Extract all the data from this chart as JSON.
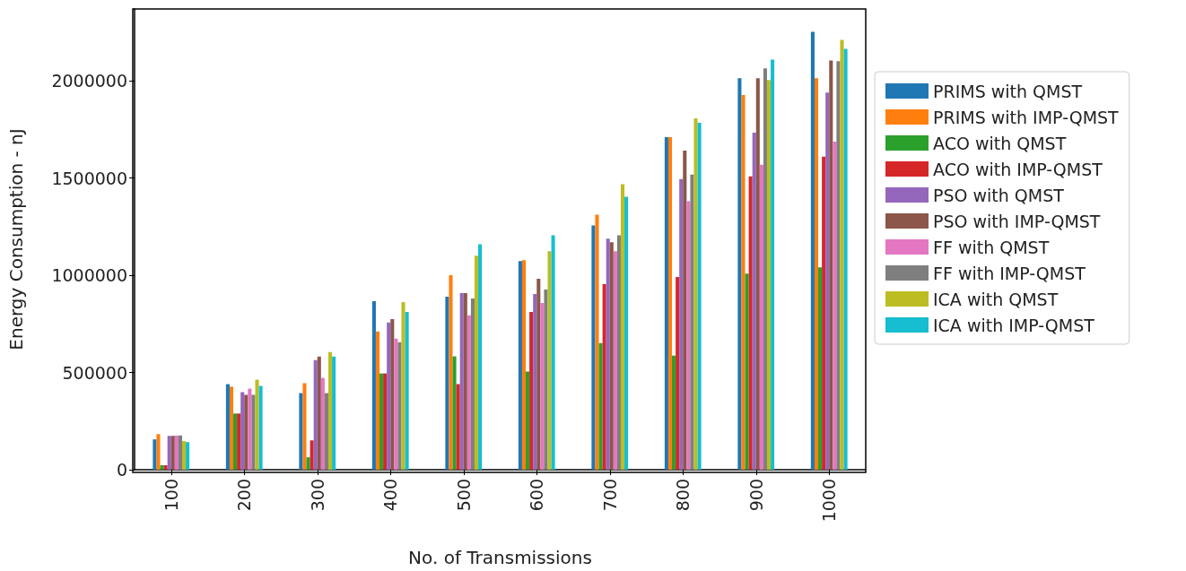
{
  "chart_data": {
    "type": "bar",
    "xlabel": "No. of Transmissions",
    "ylabel": "Energy Consumption - nJ",
    "categories": [
      "100",
      "200",
      "300",
      "400",
      "500",
      "600",
      "700",
      "800",
      "900",
      "1000"
    ],
    "series": [
      {
        "name": "PRIMS with QMST",
        "color": "#1f77b4",
        "values": [
          156000,
          440000,
          394000,
          867000,
          890000,
          1073000,
          1257000,
          1711000,
          2014000,
          2252000
        ]
      },
      {
        "name": "PRIMS with IMP-QMST",
        "color": "#ff7f0e",
        "values": [
          183000,
          427000,
          445000,
          711000,
          1000000,
          1078000,
          1312000,
          1711000,
          1927000,
          2014000
        ]
      },
      {
        "name": "ACO with QMST",
        "color": "#2ca02c",
        "values": [
          23000,
          289000,
          64000,
          495000,
          583000,
          505000,
          651000,
          587000,
          1009000,
          1041000
        ]
      },
      {
        "name": "ACO with IMP-QMST",
        "color": "#d62728",
        "values": [
          23000,
          289000,
          151000,
          495000,
          440000,
          812000,
          954000,
          991000,
          1509000,
          1610000
        ]
      },
      {
        "name": "PSO with QMST",
        "color": "#9467bd",
        "values": [
          174000,
          399000,
          564000,
          757000,
          908000,
          904000,
          1188000,
          1495000,
          1734000,
          1940000
        ]
      },
      {
        "name": "PSO with IMP-QMST",
        "color": "#8c564b",
        "values": [
          174000,
          385000,
          582000,
          775000,
          908000,
          982000,
          1170000,
          1642000,
          2014000,
          2105000
        ]
      },
      {
        "name": "FF with QMST",
        "color": "#e377c2",
        "values": [
          176000,
          417000,
          472000,
          674000,
          794000,
          858000,
          1124000,
          1381000,
          1569000,
          1688000
        ]
      },
      {
        "name": "FF with IMP-QMST",
        "color": "#7f7f7f",
        "values": [
          176000,
          385000,
          394000,
          656000,
          881000,
          927000,
          1206000,
          1518000,
          2064000,
          2101000
        ]
      },
      {
        "name": "ICA with QMST",
        "color": "#bcbd22",
        "values": [
          147000,
          463000,
          605000,
          862000,
          1101000,
          1124000,
          1468000,
          1807000,
          2005000,
          2211000
        ]
      },
      {
        "name": "ICA with IMP-QMST",
        "color": "#17becf",
        "values": [
          142000,
          431000,
          582000,
          812000,
          1160000,
          1206000,
          1404000,
          1784000,
          2110000,
          2165000
        ]
      }
    ],
    "ylim": [
      0,
      2370000
    ],
    "yticks": [
      0,
      500000,
      1000000,
      1500000,
      2000000
    ],
    "grid": false,
    "legend": "right"
  }
}
